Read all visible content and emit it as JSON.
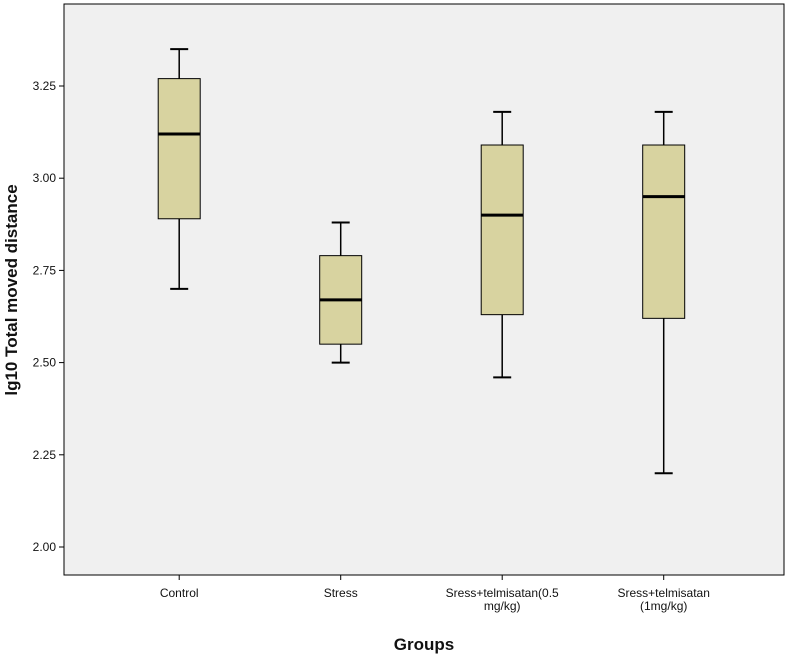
{
  "chart_data": {
    "type": "boxplot",
    "title": "",
    "xlabel": "Groups",
    "ylabel": "lg10 Total moved distance",
    "ylim": [
      1.95,
      3.46
    ],
    "yticks": [
      2.0,
      2.25,
      2.5,
      2.75,
      3.0,
      3.25
    ],
    "ytick_labels": [
      "2.00",
      "2.25",
      "2.50",
      "2.75",
      "3.00",
      "3.25"
    ],
    "categories": [
      [
        "Control"
      ],
      [
        "Stress"
      ],
      [
        "Sress+telmisatan(0.5",
        "mg/kg)"
      ],
      [
        "Sress+telmisatan",
        "(1mg/kg)"
      ]
    ],
    "boxes": [
      {
        "min": 2.7,
        "q1": 2.89,
        "median": 3.12,
        "q3": 3.27,
        "max": 3.35
      },
      {
        "min": 2.5,
        "q1": 2.55,
        "median": 2.67,
        "q3": 2.79,
        "max": 2.88
      },
      {
        "min": 2.46,
        "q1": 2.63,
        "median": 2.9,
        "q3": 3.09,
        "max": 3.18
      },
      {
        "min": 2.2,
        "q1": 2.62,
        "median": 2.95,
        "q3": 3.09,
        "max": 3.18
      }
    ],
    "colors": {
      "plot_bg": "#f0f0f0",
      "box_fill": "#d8d3a0",
      "stroke": "#000000"
    }
  }
}
